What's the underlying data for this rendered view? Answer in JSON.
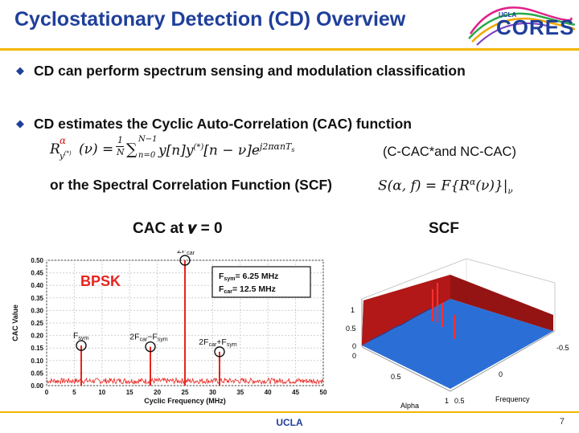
{
  "slide": {
    "title": "Cyclostationary Detection (CD) Overview",
    "logo_top": "UCLA",
    "logo_main": "CORES",
    "bullet1": "CD can perform spectrum sensing and modulation classification",
    "bullet2": "CD estimates the Cyclic Auto-Correlation (CAC) function",
    "cac_note": "(C-CAC*and NC-CAC)",
    "scf_line_text": "or the Spectral Correlation Function (SCF)",
    "footer": "UCLA",
    "page_number": "7"
  },
  "chart_data": [
    {
      "type": "line",
      "title": "CAC at 𝝂 = 0",
      "xlabel": "Cyclic Frequency (MHz)",
      "ylabel": "CAC Value",
      "xlim": [
        0,
        50
      ],
      "ylim": [
        0,
        0.5
      ],
      "xticks": [
        0,
        5,
        10,
        15,
        20,
        25,
        30,
        35,
        40,
        45,
        50
      ],
      "yticks": [
        0,
        0.05,
        0.1,
        0.15,
        0.2,
        0.25,
        0.3,
        0.35,
        0.4,
        0.45,
        0.5
      ],
      "grid": true,
      "color": "#e8231d",
      "label_bpsk": "BPSK",
      "legend_fsym": "= 6.25 MHz",
      "legend_fcar": "= 12.5 MHz",
      "noise_level": 0.025,
      "peaks": [
        {
          "x": 6.25,
          "y": 0.16,
          "label": "F",
          "sub": "sym"
        },
        {
          "x": 18.75,
          "y": 0.155,
          "label": "2F",
          "sub": "car",
          "mid": "−F",
          "sub2": "sym"
        },
        {
          "x": 25,
          "y": 0.5,
          "label": "2F",
          "sub": "car"
        },
        {
          "x": 31.25,
          "y": 0.135,
          "label": "2F",
          "sub": "car",
          "mid": "+F",
          "sub2": "sym"
        }
      ]
    },
    {
      "type": "surface",
      "title": "SCF",
      "xlabel": "Alpha",
      "ylabel": "Frequency",
      "alpha_ticks": [
        "0",
        "0.5",
        "1"
      ],
      "freq_ticks": [
        "-0.5",
        "0",
        "0.5"
      ],
      "z_ticks": [
        "0",
        "0.5",
        "1"
      ],
      "colors": [
        "#1f5fd0",
        "#8b0000",
        "#e02020"
      ]
    }
  ]
}
